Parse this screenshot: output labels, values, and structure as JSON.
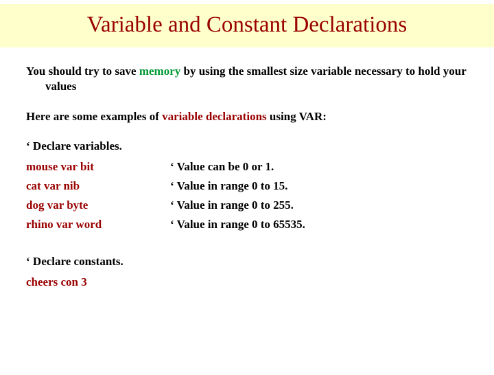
{
  "title": "Variable and Constant Declarations",
  "intro": {
    "part1": "You should try to save ",
    "memory": "memory",
    "part2": " by using the smallest size variable necessary to hold your values"
  },
  "examples_intro": {
    "part1": "Here are some examples of ",
    "highlight": "variable declarations",
    "part2": " using VAR:"
  },
  "declare_vars_label": "‘ Declare variables.",
  "rows": [
    {
      "left": "mouse var bit",
      "right": " ‘ Value can be 0 or 1."
    },
    {
      "left": "cat var nib",
      "right": "‘ Value in range 0 to 15."
    },
    {
      "left": "dog var byte",
      "right": " ‘ Value in range 0 to 255."
    },
    {
      "left": "rhino var word",
      "right": " ‘ Value in range 0 to 65535."
    }
  ],
  "declare_const_label": "‘ Declare constants.",
  "const_line": "cheers con  3",
  "colors": {
    "title": "#990000",
    "title_bg": "#ffffcc",
    "green": "#009933",
    "darkred": "#990000",
    "text": "#000000",
    "background": "#ffffff"
  },
  "fontsize": {
    "title": 33,
    "body": 17
  }
}
